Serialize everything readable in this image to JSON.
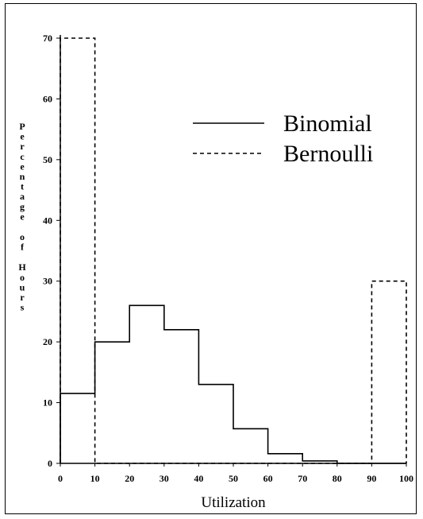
{
  "chart_data": {
    "type": "line",
    "xlabel": "Utilization",
    "ylabel": "Percentage of Hours",
    "xlim": [
      0,
      100
    ],
    "ylim": [
      0,
      70
    ],
    "xticks": [
      0,
      10,
      20,
      30,
      40,
      50,
      60,
      70,
      80,
      90,
      100
    ],
    "yticks": [
      0,
      10,
      20,
      30,
      40,
      50,
      60,
      70
    ],
    "grid": false,
    "legend_position": "top-right",
    "series": [
      {
        "name": "Binomial",
        "style": "solid",
        "color": "#000000",
        "bin_edges": [
          0,
          10,
          20,
          30,
          40,
          50,
          60,
          70,
          80,
          90,
          100
        ],
        "values": [
          11.5,
          20,
          26,
          22,
          13,
          5.7,
          1.6,
          0.4,
          0,
          0
        ]
      },
      {
        "name": "Bernoulli",
        "style": "dashed",
        "color": "#000000",
        "bin_edges": [
          0,
          10,
          20,
          30,
          40,
          50,
          60,
          70,
          80,
          90,
          100
        ],
        "values": [
          70,
          0,
          0,
          0,
          0,
          0,
          0,
          0,
          0,
          30
        ]
      }
    ]
  }
}
